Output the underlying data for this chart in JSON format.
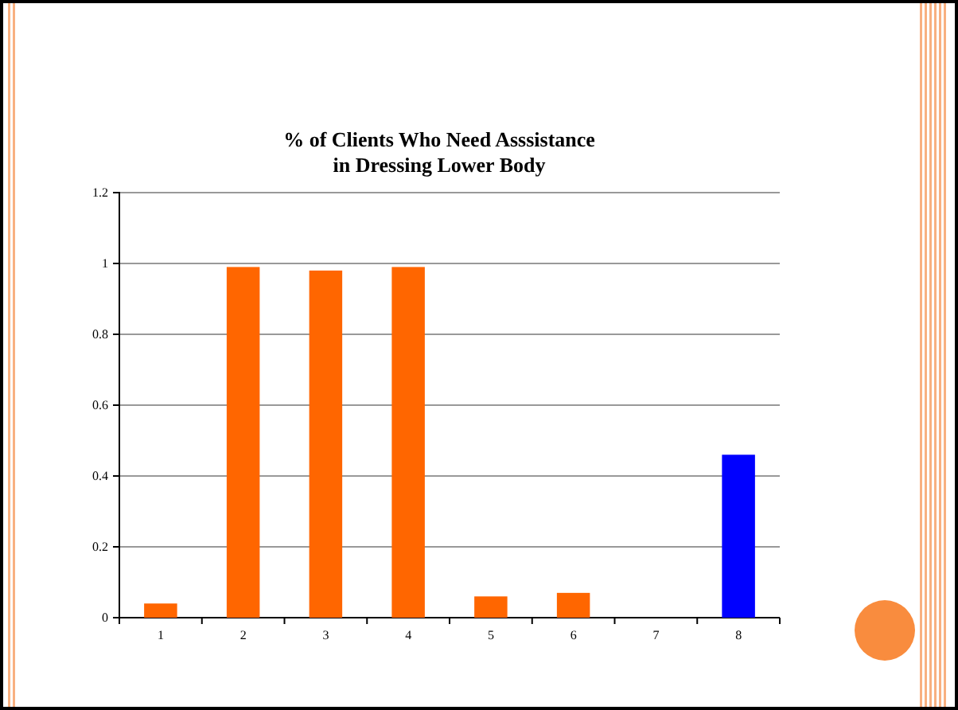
{
  "chart_data": {
    "type": "bar",
    "title": "% of Clients Who Need Asssistance in Dressing Lower Body",
    "categories": [
      "1",
      "2",
      "3",
      "4",
      "5",
      "6",
      "7",
      "8"
    ],
    "values": [
      0.04,
      0.99,
      0.98,
      0.99,
      0.06,
      0.07,
      0,
      0.46
    ],
    "colors": [
      "#ff6600",
      "#ff6600",
      "#ff6600",
      "#ff6600",
      "#ff6600",
      "#ff6600",
      "#ff6600",
      "#0000ff"
    ],
    "ylim": [
      0,
      1.2
    ],
    "yticks": [
      0,
      0.2,
      0.4,
      0.6,
      0.8,
      1,
      1.2
    ],
    "grid": "y"
  }
}
